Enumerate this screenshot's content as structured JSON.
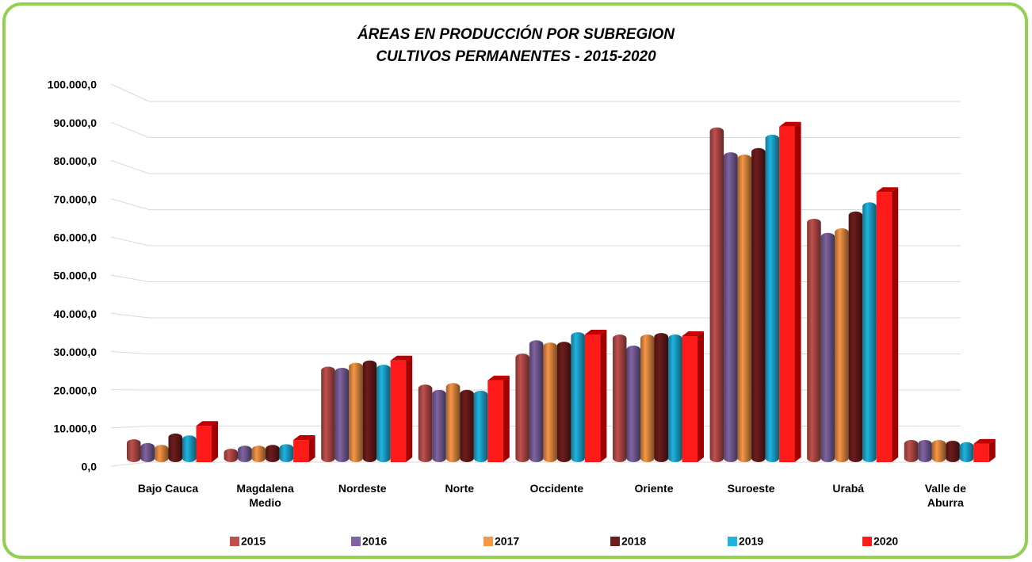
{
  "chart_data": {
    "type": "bar3d",
    "title": "ÁREAS EN PRODUCCIÓN POR SUBREGION",
    "subtitle": "CULTIVOS PERMANENTES - 2015-2020",
    "categories": [
      "Bajo Cauca",
      "Magdalena Medio",
      "Nordeste",
      "Norte",
      "Occidente",
      "Oriente",
      "Suroeste",
      "Urabá",
      "Valle de Aburra"
    ],
    "series": [
      {
        "name": "2015",
        "color": "#c0504d",
        "values": [
          6000,
          3500,
          25000,
          20300,
          28400,
          33400,
          87600,
          63700,
          5800
        ]
      },
      {
        "name": "2016",
        "color": "#8064a2",
        "values": [
          5000,
          4300,
          24700,
          18900,
          31900,
          30500,
          81100,
          60000,
          5800
        ]
      },
      {
        "name": "2017",
        "color": "#f79646",
        "values": [
          4500,
          4300,
          26000,
          20700,
          31300,
          33400,
          80500,
          61200,
          5800
        ]
      },
      {
        "name": "2018",
        "color": "#6e1c1c",
        "values": [
          7500,
          4500,
          26600,
          18900,
          31500,
          33800,
          82200,
          65600,
          5600
        ]
      },
      {
        "name": "2019",
        "color": "#1fb4e0",
        "values": [
          7000,
          4700,
          25500,
          18700,
          34000,
          33400,
          85700,
          68000,
          5200
        ]
      },
      {
        "name": "2020",
        "color": "#ff1a1a",
        "values": [
          9500,
          5800,
          26600,
          21400,
          33400,
          33000,
          87800,
          70700,
          4800
        ]
      }
    ],
    "ylim": [
      0,
      100000
    ],
    "yticks": [
      {
        "value": 0,
        "label": "0,0"
      },
      {
        "value": 10000,
        "label": "10.000,0"
      },
      {
        "value": 20000,
        "label": "20.000,0"
      },
      {
        "value": 30000,
        "label": "30.000,0"
      },
      {
        "value": 40000,
        "label": "40.000,0"
      },
      {
        "value": 50000,
        "label": "50.000,0"
      },
      {
        "value": 60000,
        "label": "60.000,0"
      },
      {
        "value": 70000,
        "label": "70.000,0"
      },
      {
        "value": 80000,
        "label": "80.000,0"
      },
      {
        "value": 90000,
        "label": "90.000,0"
      },
      {
        "value": 100000,
        "label": "100.000,0"
      }
    ],
    "grid": true
  }
}
